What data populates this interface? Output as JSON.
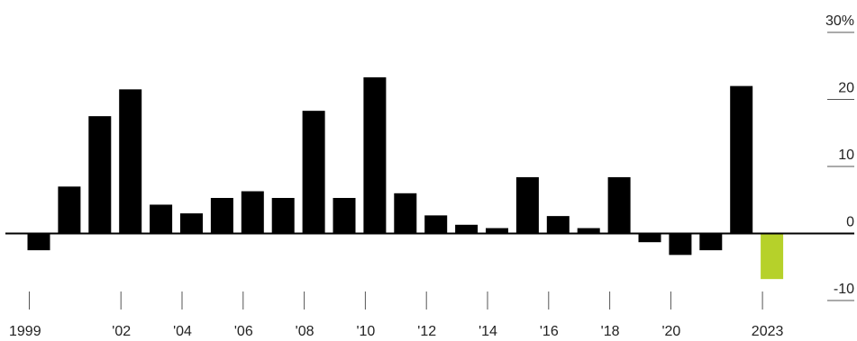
{
  "chart_data": {
    "type": "bar",
    "title": "",
    "xlabel": "",
    "ylabel": "",
    "unit": "%",
    "ylim": [
      -10,
      30
    ],
    "y_ticks": [
      {
        "value": 30,
        "label": "30%"
      },
      {
        "value": 20,
        "label": "20"
      },
      {
        "value": 10,
        "label": "10"
      },
      {
        "value": 0,
        "label": "0"
      },
      {
        "value": -10,
        "label": "-10"
      }
    ],
    "categories": [
      "1999",
      "2000",
      "2001",
      "2002",
      "2003",
      "2004",
      "2005",
      "2006",
      "2007",
      "2008",
      "2009",
      "2010",
      "2011",
      "2012",
      "2013",
      "2014",
      "2015",
      "2016",
      "2017",
      "2018",
      "2019",
      "2020",
      "2021",
      "2022",
      "2023"
    ],
    "x_tick_labels": [
      {
        "category": "1999",
        "label": "1999"
      },
      {
        "category": "2002",
        "label": "'02"
      },
      {
        "category": "2004",
        "label": "'04"
      },
      {
        "category": "2006",
        "label": "'06"
      },
      {
        "category": "2008",
        "label": "'08"
      },
      {
        "category": "2010",
        "label": "'10"
      },
      {
        "category": "2012",
        "label": "'12"
      },
      {
        "category": "2014",
        "label": "'14"
      },
      {
        "category": "2016",
        "label": "'16"
      },
      {
        "category": "2018",
        "label": "'18"
      },
      {
        "category": "2020",
        "label": "'20"
      },
      {
        "category": "2023",
        "label": "2023"
      }
    ],
    "values": [
      -2.5,
      7,
      17.5,
      21.5,
      4.3,
      3,
      5.3,
      6.3,
      5.3,
      18.3,
      5.3,
      23.3,
      6,
      2.7,
      1.3,
      0.8,
      8.4,
      2.6,
      0.8,
      8.4,
      -1.3,
      -3.2,
      -2.5,
      22,
      -6.8
    ],
    "colors": {
      "default": "#000000",
      "highlight": "#b6d12a",
      "highlight_category": "2023",
      "axis": "#000000",
      "tick": "#555555",
      "text": "#222222"
    },
    "grid": false
  }
}
